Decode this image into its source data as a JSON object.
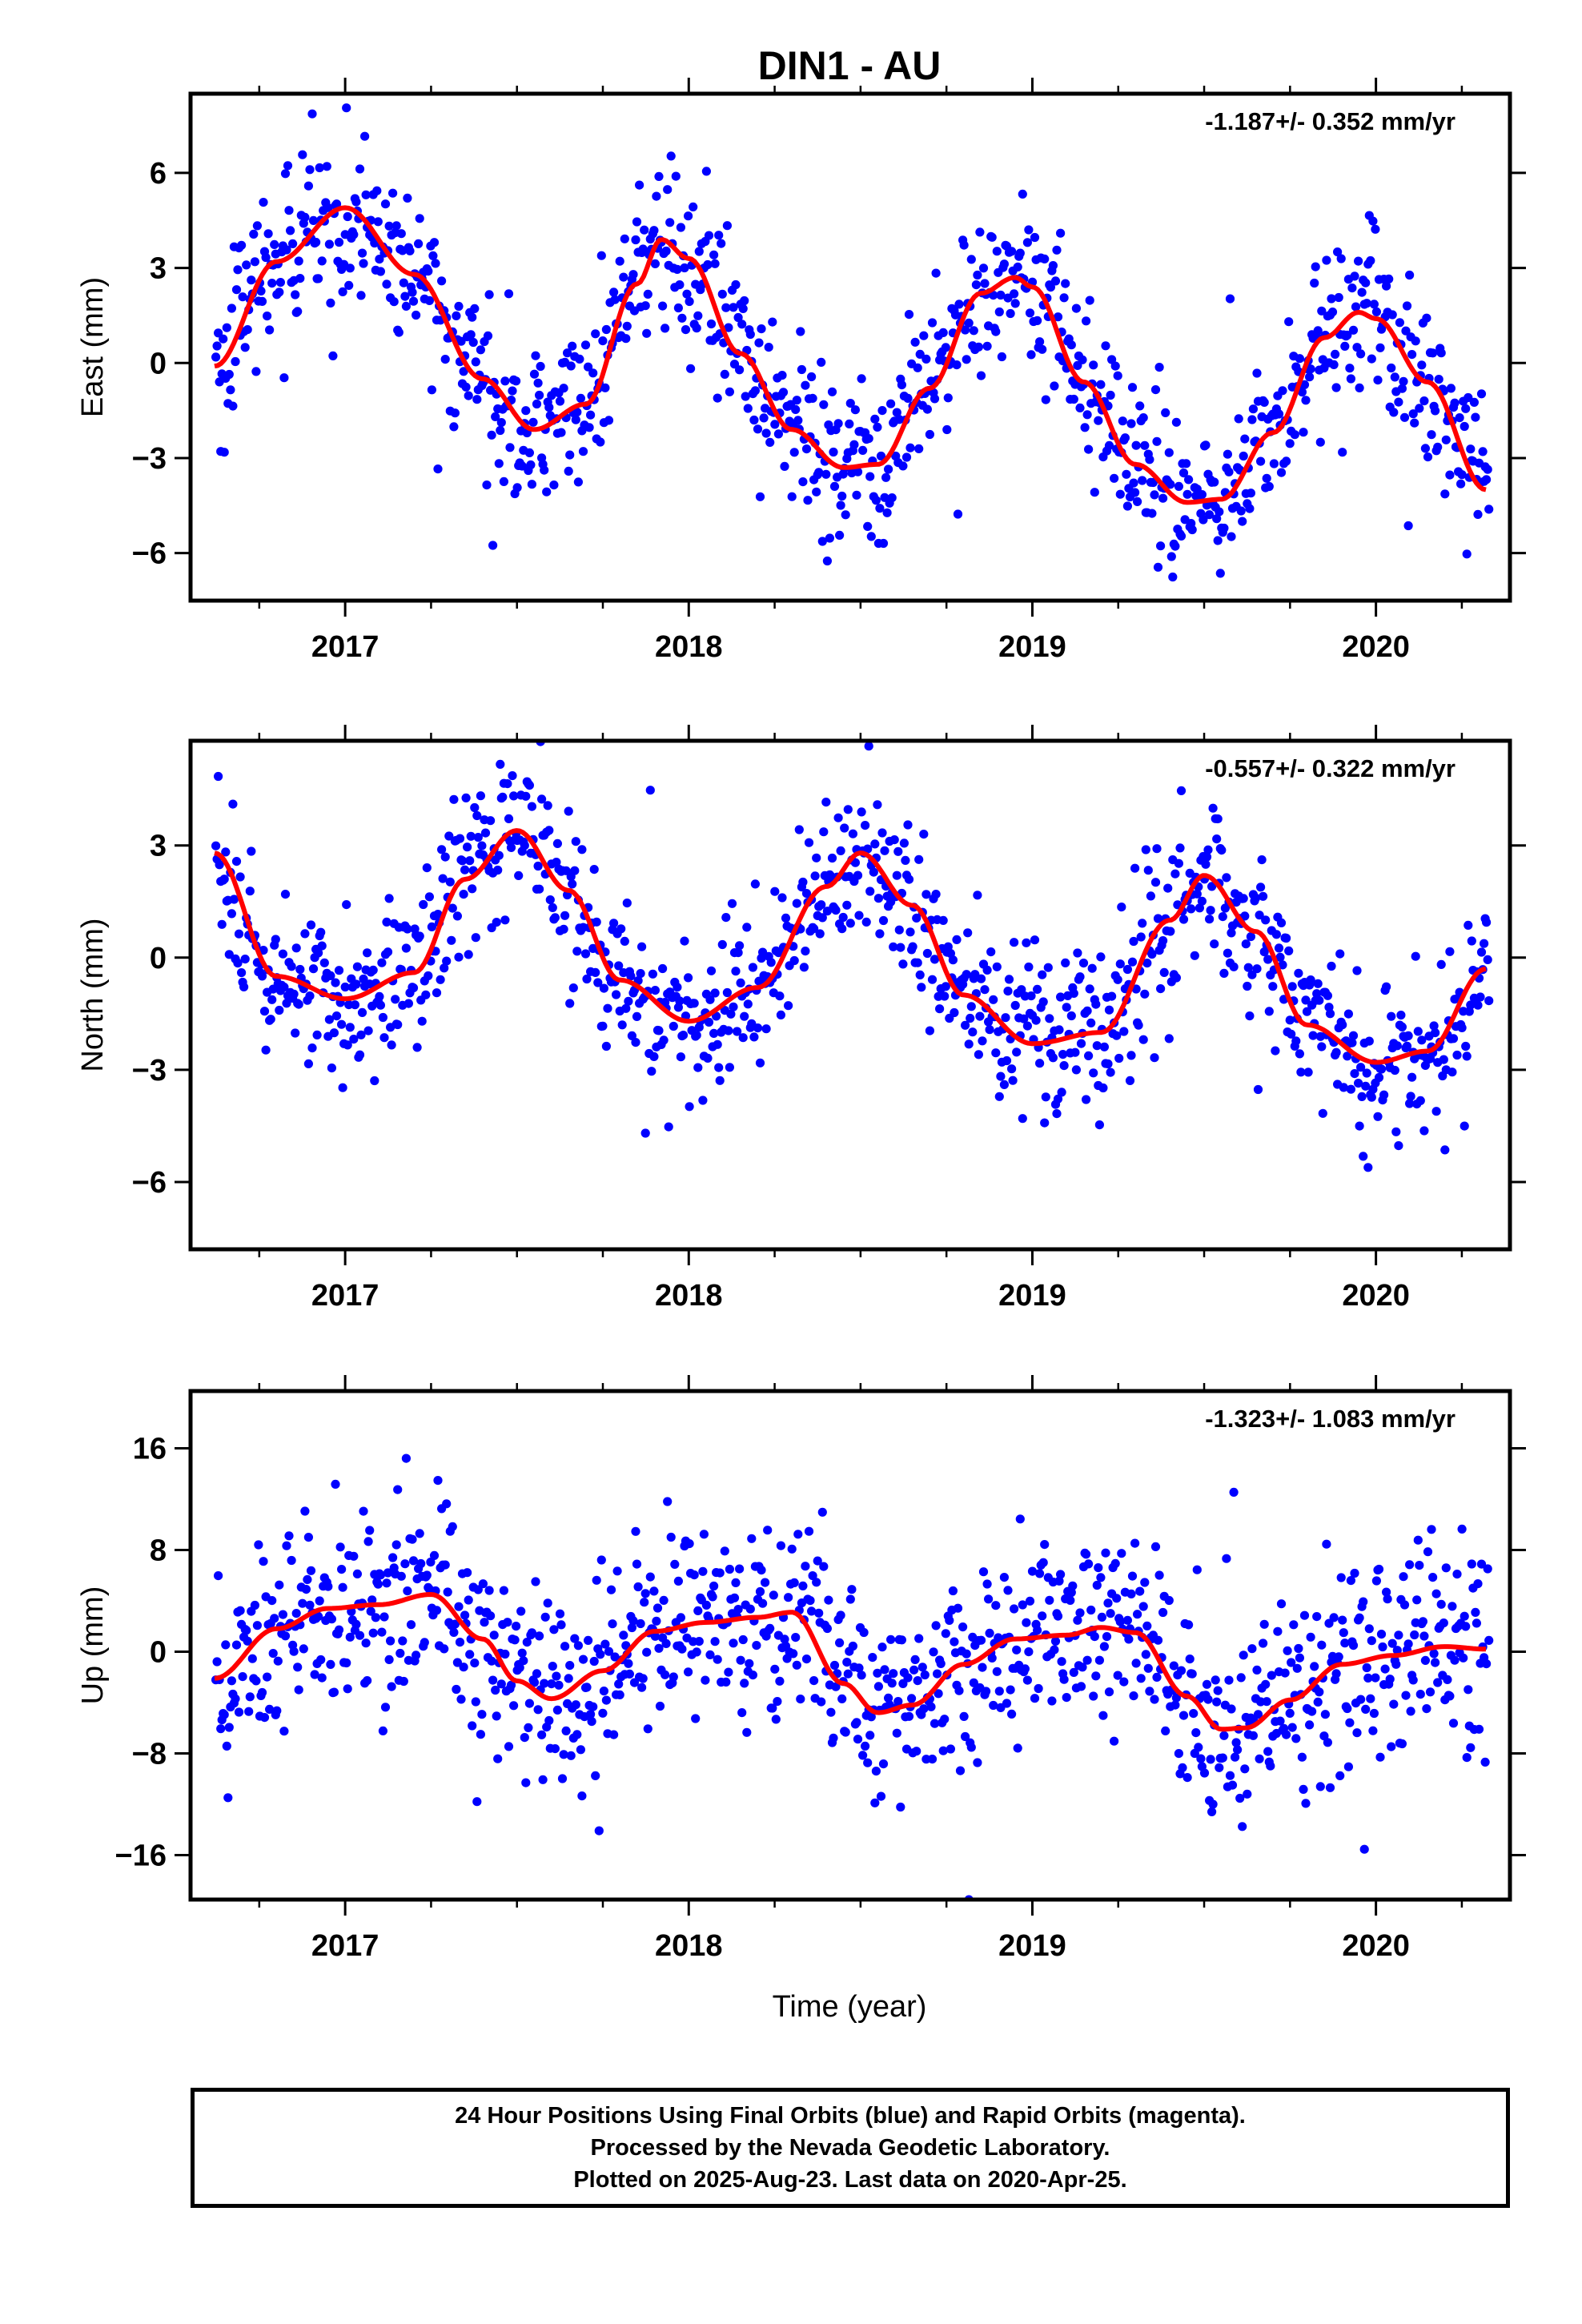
{
  "title": "DIN1 - AU",
  "xlabel": "Time (year)",
  "colors": {
    "points": "#0000ff",
    "fit": "#ff0000",
    "frame": "#000000"
  },
  "caption": {
    "line1": "24 Hour Positions Using Final Orbits (blue) and Rapid Orbits (magenta).",
    "line2": "Processed by the Nevada Geodetic Laboratory.",
    "line3": "Plotted on 2025-Aug-23. Last data on 2020-Apr-25."
  },
  "chart_data": [
    {
      "type": "scatter",
      "ylabel": "East (mm)",
      "rate": "-1.187+/- 0.352 mm/yr",
      "xlim": [
        2016.55,
        2020.39
      ],
      "ylim": [
        -7.5,
        8.5
      ],
      "xticks": [
        2017,
        2018,
        2019,
        2020
      ],
      "yticks": [
        -6,
        -3,
        0,
        3,
        6
      ],
      "ytick_labels": [
        "−6",
        "−3",
        "0",
        "3",
        "6"
      ],
      "fit": {
        "x": [
          2016.62,
          2016.8,
          2017.0,
          2017.2,
          2017.4,
          2017.55,
          2017.7,
          2017.85,
          2017.92,
          2018.0,
          2018.15,
          2018.3,
          2018.45,
          2018.55,
          2018.7,
          2018.85,
          2018.95,
          2019.0,
          2019.15,
          2019.3,
          2019.45,
          2019.55,
          2019.7,
          2019.85,
          2019.95,
          2020.0,
          2020.15,
          2020.32
        ],
        "y": [
          -0.1,
          3.2,
          4.9,
          2.8,
          -0.5,
          -2.1,
          -1.3,
          2.5,
          3.9,
          3.3,
          0.3,
          -2.1,
          -3.3,
          -3.2,
          -0.8,
          2.2,
          2.7,
          2.4,
          -0.6,
          -3.2,
          -4.4,
          -4.3,
          -2.2,
          0.8,
          1.6,
          1.4,
          -0.6,
          -4.0
        ]
      },
      "points": {
        "anchors": [
          [
            2016.62,
            -0.1
          ],
          [
            2016.8,
            3.2
          ],
          [
            2017.0,
            4.9
          ],
          [
            2017.2,
            2.8
          ],
          [
            2017.4,
            -0.5
          ],
          [
            2017.55,
            -2.1
          ],
          [
            2017.7,
            -1.3
          ],
          [
            2017.85,
            2.5
          ],
          [
            2017.92,
            3.9
          ],
          [
            2018.0,
            3.3
          ],
          [
            2018.15,
            0.3
          ],
          [
            2018.3,
            -2.1
          ],
          [
            2018.45,
            -3.3
          ],
          [
            2018.55,
            -3.2
          ],
          [
            2018.7,
            -0.8
          ],
          [
            2018.85,
            2.2
          ],
          [
            2018.95,
            2.7
          ],
          [
            2019.0,
            2.4
          ],
          [
            2019.15,
            -0.6
          ],
          [
            2019.3,
            -3.2
          ],
          [
            2019.45,
            -4.4
          ],
          [
            2019.55,
            -4.3
          ],
          [
            2019.7,
            -2.2
          ],
          [
            2019.85,
            0.8
          ],
          [
            2019.95,
            1.6
          ],
          [
            2020.0,
            1.4
          ],
          [
            2020.15,
            -0.6
          ],
          [
            2020.32,
            -4.0
          ]
        ],
        "scatter": 1.3,
        "count": 1050
      }
    },
    {
      "type": "scatter",
      "ylabel": "North (mm)",
      "rate": "-0.557+/- 0.322 mm/yr",
      "xlim": [
        2016.55,
        2020.39
      ],
      "ylim": [
        -7.8,
        5.8
      ],
      "xticks": [
        2017,
        2018,
        2019,
        2020
      ],
      "yticks": [
        -6,
        -3,
        0,
        3
      ],
      "ytick_labels": [
        "−6",
        "−3",
        "0",
        "3"
      ],
      "fit": {
        "x": [
          2016.62,
          2016.8,
          2017.0,
          2017.2,
          2017.35,
          2017.5,
          2017.65,
          2017.8,
          2018.0,
          2018.2,
          2018.4,
          2018.5,
          2018.65,
          2018.8,
          2019.0,
          2019.2,
          2019.4,
          2019.5,
          2019.65,
          2019.8,
          2020.0,
          2020.15,
          2020.32
        ],
        "y": [
          2.8,
          -0.5,
          -1.1,
          -0.4,
          2.1,
          3.4,
          1.8,
          -0.6,
          -1.7,
          -0.8,
          1.9,
          2.8,
          1.4,
          -1.0,
          -2.3,
          -2.0,
          1.0,
          2.2,
          0.7,
          -1.8,
          -2.8,
          -2.5,
          -0.3
        ]
      },
      "points": {
        "anchors": [
          [
            2016.62,
            2.8
          ],
          [
            2016.8,
            -0.5
          ],
          [
            2017.0,
            -1.1
          ],
          [
            2017.2,
            -0.4
          ],
          [
            2017.35,
            2.1
          ],
          [
            2017.5,
            3.4
          ],
          [
            2017.65,
            1.8
          ],
          [
            2017.8,
            -0.6
          ],
          [
            2018.0,
            -1.7
          ],
          [
            2018.2,
            -0.8
          ],
          [
            2018.4,
            1.9
          ],
          [
            2018.5,
            2.8
          ],
          [
            2018.65,
            1.4
          ],
          [
            2018.8,
            -1.0
          ],
          [
            2019.0,
            -2.3
          ],
          [
            2019.2,
            -2.0
          ],
          [
            2019.4,
            1.0
          ],
          [
            2019.5,
            2.2
          ],
          [
            2019.65,
            0.7
          ],
          [
            2019.8,
            -1.8
          ],
          [
            2020.0,
            -2.8
          ],
          [
            2020.15,
            -2.5
          ],
          [
            2020.32,
            -0.3
          ]
        ],
        "scatter": 1.1,
        "count": 1050
      }
    },
    {
      "type": "scatter",
      "ylabel": "Up (mm)",
      "rate": "-1.323+/- 1.083 mm/yr",
      "xlim": [
        2016.55,
        2020.39
      ],
      "ylim": [
        -19.5,
        20.5
      ],
      "xticks": [
        2017,
        2018,
        2019,
        2020
      ],
      "yticks": [
        -16,
        -8,
        0,
        8,
        16
      ],
      "ytick_labels": [
        "−16",
        "−8",
        "0",
        "8",
        "16"
      ],
      "fit": {
        "x": [
          2016.62,
          2016.8,
          2016.95,
          2017.1,
          2017.25,
          2017.4,
          2017.5,
          2017.6,
          2017.75,
          2017.9,
          2018.05,
          2018.2,
          2018.3,
          2018.45,
          2018.55,
          2018.65,
          2018.8,
          2018.95,
          2019.1,
          2019.2,
          2019.3,
          2019.45,
          2019.55,
          2019.62,
          2019.75,
          2019.9,
          2020.05,
          2020.2,
          2020.32
        ],
        "y": [
          -2.1,
          1.8,
          3.4,
          3.7,
          4.5,
          1.0,
          -2.3,
          -3.7,
          -1.5,
          1.6,
          2.3,
          2.7,
          3.1,
          -2.5,
          -4.8,
          -4.2,
          -1.0,
          1.0,
          1.3,
          1.9,
          1.5,
          -3.5,
          -6.1,
          -6.0,
          -3.8,
          -1.0,
          -0.3,
          0.4,
          0.2
        ]
      },
      "points": {
        "anchors": [
          [
            2016.62,
            -2.1
          ],
          [
            2016.8,
            1.8
          ],
          [
            2016.95,
            3.4
          ],
          [
            2017.1,
            3.7
          ],
          [
            2017.25,
            4.5
          ],
          [
            2017.4,
            1.0
          ],
          [
            2017.5,
            -2.3
          ],
          [
            2017.6,
            -3.7
          ],
          [
            2017.75,
            -1.5
          ],
          [
            2017.9,
            1.6
          ],
          [
            2018.05,
            2.3
          ],
          [
            2018.2,
            2.7
          ],
          [
            2018.3,
            3.1
          ],
          [
            2018.45,
            -2.5
          ],
          [
            2018.55,
            -4.8
          ],
          [
            2018.65,
            -4.2
          ],
          [
            2018.8,
            -1.0
          ],
          [
            2018.95,
            1.0
          ],
          [
            2019.1,
            1.3
          ],
          [
            2019.2,
            1.9
          ],
          [
            2019.3,
            1.5
          ],
          [
            2019.45,
            -3.5
          ],
          [
            2019.55,
            -6.1
          ],
          [
            2019.62,
            -6.0
          ],
          [
            2019.75,
            -3.8
          ],
          [
            2019.9,
            -1.0
          ],
          [
            2020.05,
            -0.3
          ],
          [
            2020.2,
            0.4
          ],
          [
            2020.32,
            0.2
          ]
        ],
        "scatter": 3.8,
        "count": 1050
      }
    }
  ]
}
